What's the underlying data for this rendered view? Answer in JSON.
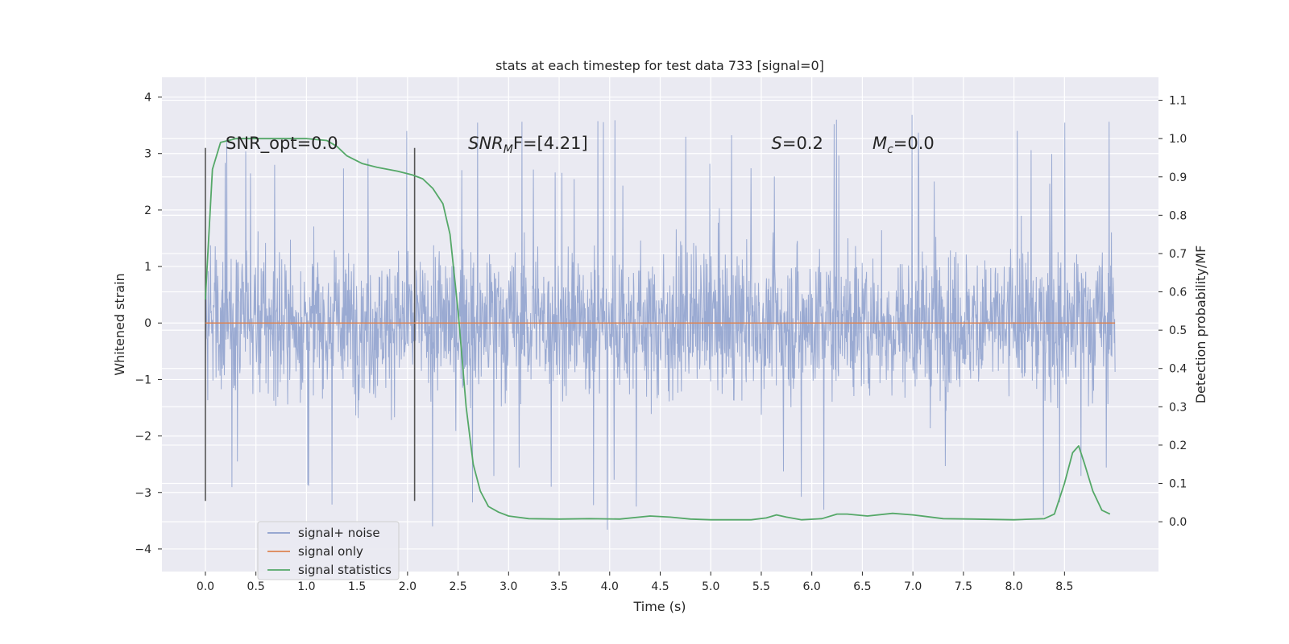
{
  "chart_data": {
    "type": "line",
    "title": "stats at each timestep for test data 733 [signal=0]",
    "xlabel": "Time (s)",
    "ylabel": "Whitened strain",
    "y2label": "Detection probability/MF",
    "xlim": [
      -0.43,
      9.43
    ],
    "ylim": [
      -4.4,
      4.35
    ],
    "y2lim": [
      -0.13,
      1.16
    ],
    "x_ticks": [
      "0.0",
      "0.5",
      "1.0",
      "1.5",
      "2.0",
      "2.5",
      "3.0",
      "3.5",
      "4.0",
      "4.5",
      "5.0",
      "5.5",
      "6.0",
      "6.5",
      "7.0",
      "7.5",
      "8.0",
      "8.5"
    ],
    "y_ticks": [
      "−4",
      "−3",
      "−2",
      "−1",
      "0",
      "1",
      "2",
      "3",
      "4"
    ],
    "y2_ticks": [
      "0.0",
      "0.1",
      "0.2",
      "0.3",
      "0.4",
      "0.5",
      "0.6",
      "0.7",
      "0.8",
      "0.9",
      "1.0",
      "1.1"
    ],
    "grid": true,
    "legend_position": "lower-left",
    "colors": {
      "background": "#eaeaf2",
      "grid": "#ffffff",
      "noise": "#8c9fcc",
      "signal_only": "#dd8452",
      "statistics": "#55a868",
      "markers": "#555555"
    },
    "series": [
      {
        "name": "signal+ noise",
        "x_range": [
          0.0,
          9.0
        ],
        "y_range": [
          -3.9,
          3.95
        ],
        "typical_envelope": [
          -1.9,
          2.0
        ]
      },
      {
        "name": "signal only",
        "x": [
          0.0,
          9.0
        ],
        "y": [
          0.0,
          0.0
        ]
      },
      {
        "name": "signal statistics",
        "x": [
          0.0,
          0.07,
          0.15,
          0.3,
          0.5,
          0.8,
          1.0,
          1.2,
          1.3,
          1.4,
          1.55,
          1.7,
          1.9,
          2.05,
          2.15,
          2.25,
          2.35,
          2.42,
          2.5,
          2.58,
          2.65,
          2.72,
          2.8,
          2.9,
          3.0,
          3.2,
          3.5,
          3.8,
          4.1,
          4.4,
          4.6,
          4.8,
          5.0,
          5.4,
          5.55,
          5.65,
          5.75,
          5.9,
          6.1,
          6.25,
          6.35,
          6.55,
          6.8,
          7.0,
          7.3,
          7.6,
          8.0,
          8.3,
          8.4,
          8.5,
          8.58,
          8.64,
          8.7,
          8.78,
          8.87,
          8.95
        ],
        "y": [
          0.58,
          0.92,
          0.99,
          1.0,
          1.0,
          1.0,
          1.0,
          0.995,
          0.98,
          0.955,
          0.935,
          0.925,
          0.915,
          0.905,
          0.895,
          0.87,
          0.83,
          0.75,
          0.55,
          0.3,
          0.15,
          0.08,
          0.04,
          0.025,
          0.015,
          0.008,
          0.007,
          0.008,
          0.007,
          0.015,
          0.012,
          0.007,
          0.005,
          0.005,
          0.01,
          0.018,
          0.012,
          0.005,
          0.008,
          0.02,
          0.02,
          0.015,
          0.022,
          0.018,
          0.008,
          0.007,
          0.005,
          0.008,
          0.02,
          0.1,
          0.18,
          0.198,
          0.15,
          0.08,
          0.03,
          0.02
        ]
      }
    ],
    "vertical_markers": [
      0.0,
      2.07
    ],
    "annotations": [
      {
        "text": "SNR_opt=0.0",
        "x": 0.2
      },
      {
        "text_main": "SNR",
        "text_sub": "M",
        "text_rest": "F=[4.21]",
        "x": 2.6
      },
      {
        "text_main": "S",
        "text_sub": "",
        "text_rest": "=0.2",
        "x": 5.6
      },
      {
        "text_main": "M",
        "text_sub": "c",
        "text_rest": "=0.0",
        "x": 6.6
      }
    ]
  }
}
